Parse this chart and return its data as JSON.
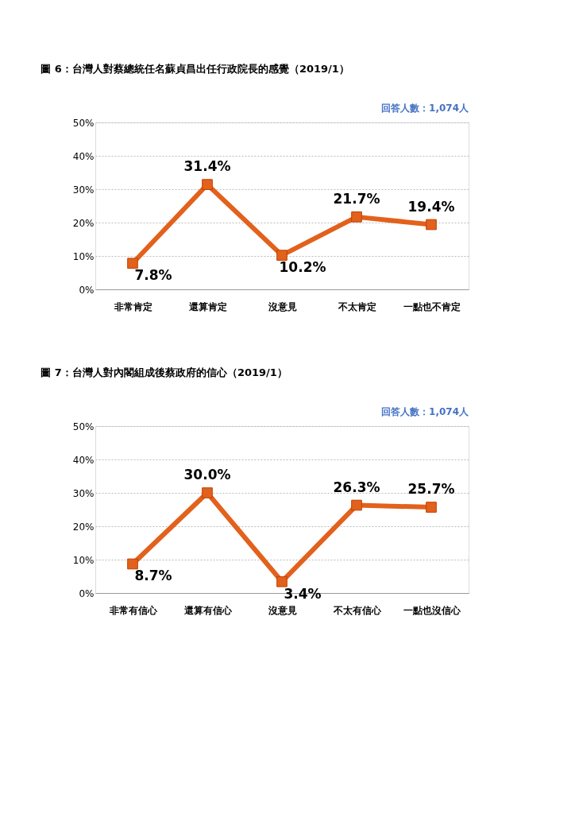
{
  "chart_data": [
    {
      "type": "line",
      "title": "圖 6：台灣人對蔡總統任名蘇貞昌出任行政院長的感覺（2019/1）",
      "annotations": [
        "回答人數：1,074人"
      ],
      "categories": [
        "非常肯定",
        "還算肯定",
        "沒意見",
        "不太肯定",
        "一點也不肯定"
      ],
      "series": [
        {
          "color": "#e2611c",
          "values": [
            7.8,
            31.4,
            10.2,
            21.7,
            19.4
          ],
          "value_labels": [
            "7.8%",
            "31.4%",
            "10.2%",
            "21.7%",
            "19.4%"
          ]
        }
      ],
      "ylim": [
        0,
        50
      ],
      "yticks": [
        {
          "value": 0,
          "label": "0%"
        },
        {
          "value": 10,
          "label": "10%"
        },
        {
          "value": 20,
          "label": "20%"
        },
        {
          "value": 30,
          "label": "30%"
        },
        {
          "value": 40,
          "label": "40%"
        },
        {
          "value": 50,
          "label": "50%"
        }
      ],
      "grid": "y",
      "marker": "square",
      "line_style": "solid"
    },
    {
      "type": "line",
      "title": "圖 7：台灣人對內閣組成後蔡政府的信心（2019/1）",
      "annotations": [
        "回答人數：1,074人"
      ],
      "categories": [
        "非常有信心",
        "還算有信心",
        "沒意見",
        "不太有信心",
        "一點也沒信心"
      ],
      "series": [
        {
          "color": "#e2611c",
          "values": [
            8.7,
            30.0,
            3.4,
            26.3,
            25.7
          ],
          "value_labels": [
            "8.7%",
            "30.0%",
            "3.4%",
            "26.3%",
            "25.7%"
          ]
        }
      ],
      "ylim": [
        0,
        50
      ],
      "yticks": [
        {
          "value": 0,
          "label": "0%"
        },
        {
          "value": 10,
          "label": "10%"
        },
        {
          "value": 20,
          "label": "20%"
        },
        {
          "value": 30,
          "label": "30%"
        },
        {
          "value": 40,
          "label": "40%"
        },
        {
          "value": 50,
          "label": "50%"
        }
      ],
      "grid": "y",
      "marker": "square",
      "line_style": "solid"
    }
  ]
}
